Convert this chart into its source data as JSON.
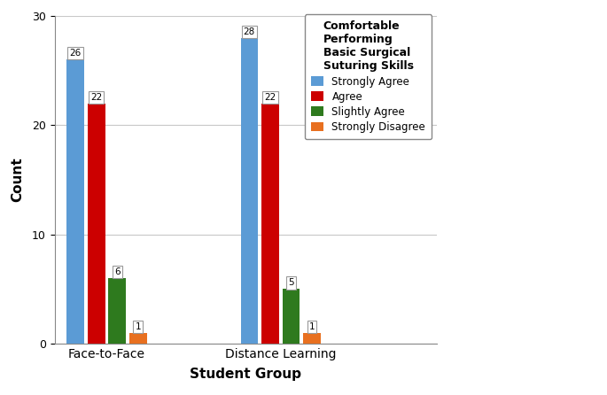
{
  "groups": [
    "Face-to-Face",
    "Distance Learning"
  ],
  "categories": [
    "Strongly Agree",
    "Agree",
    "Slightly Agree",
    "Strongly Disagree"
  ],
  "values": {
    "Face-to-Face": [
      26,
      22,
      6,
      1
    ],
    "Distance Learning": [
      28,
      22,
      5,
      1
    ]
  },
  "bar_colors": [
    "#5b9bd5",
    "#cc0000",
    "#2e7a1e",
    "#e87020"
  ],
  "ylim": [
    0,
    30
  ],
  "yticks": [
    0,
    10,
    20,
    30
  ],
  "xlabel": "Student Group",
  "ylabel": "Count",
  "legend_title": "Comfortable\nPerforming\nBasic Surgical\nSuturing Skills",
  "background_color": "#ffffff",
  "grid_color": "#c8c8c8",
  "bar_width": 0.15,
  "group_centers": [
    1.0,
    2.5
  ]
}
